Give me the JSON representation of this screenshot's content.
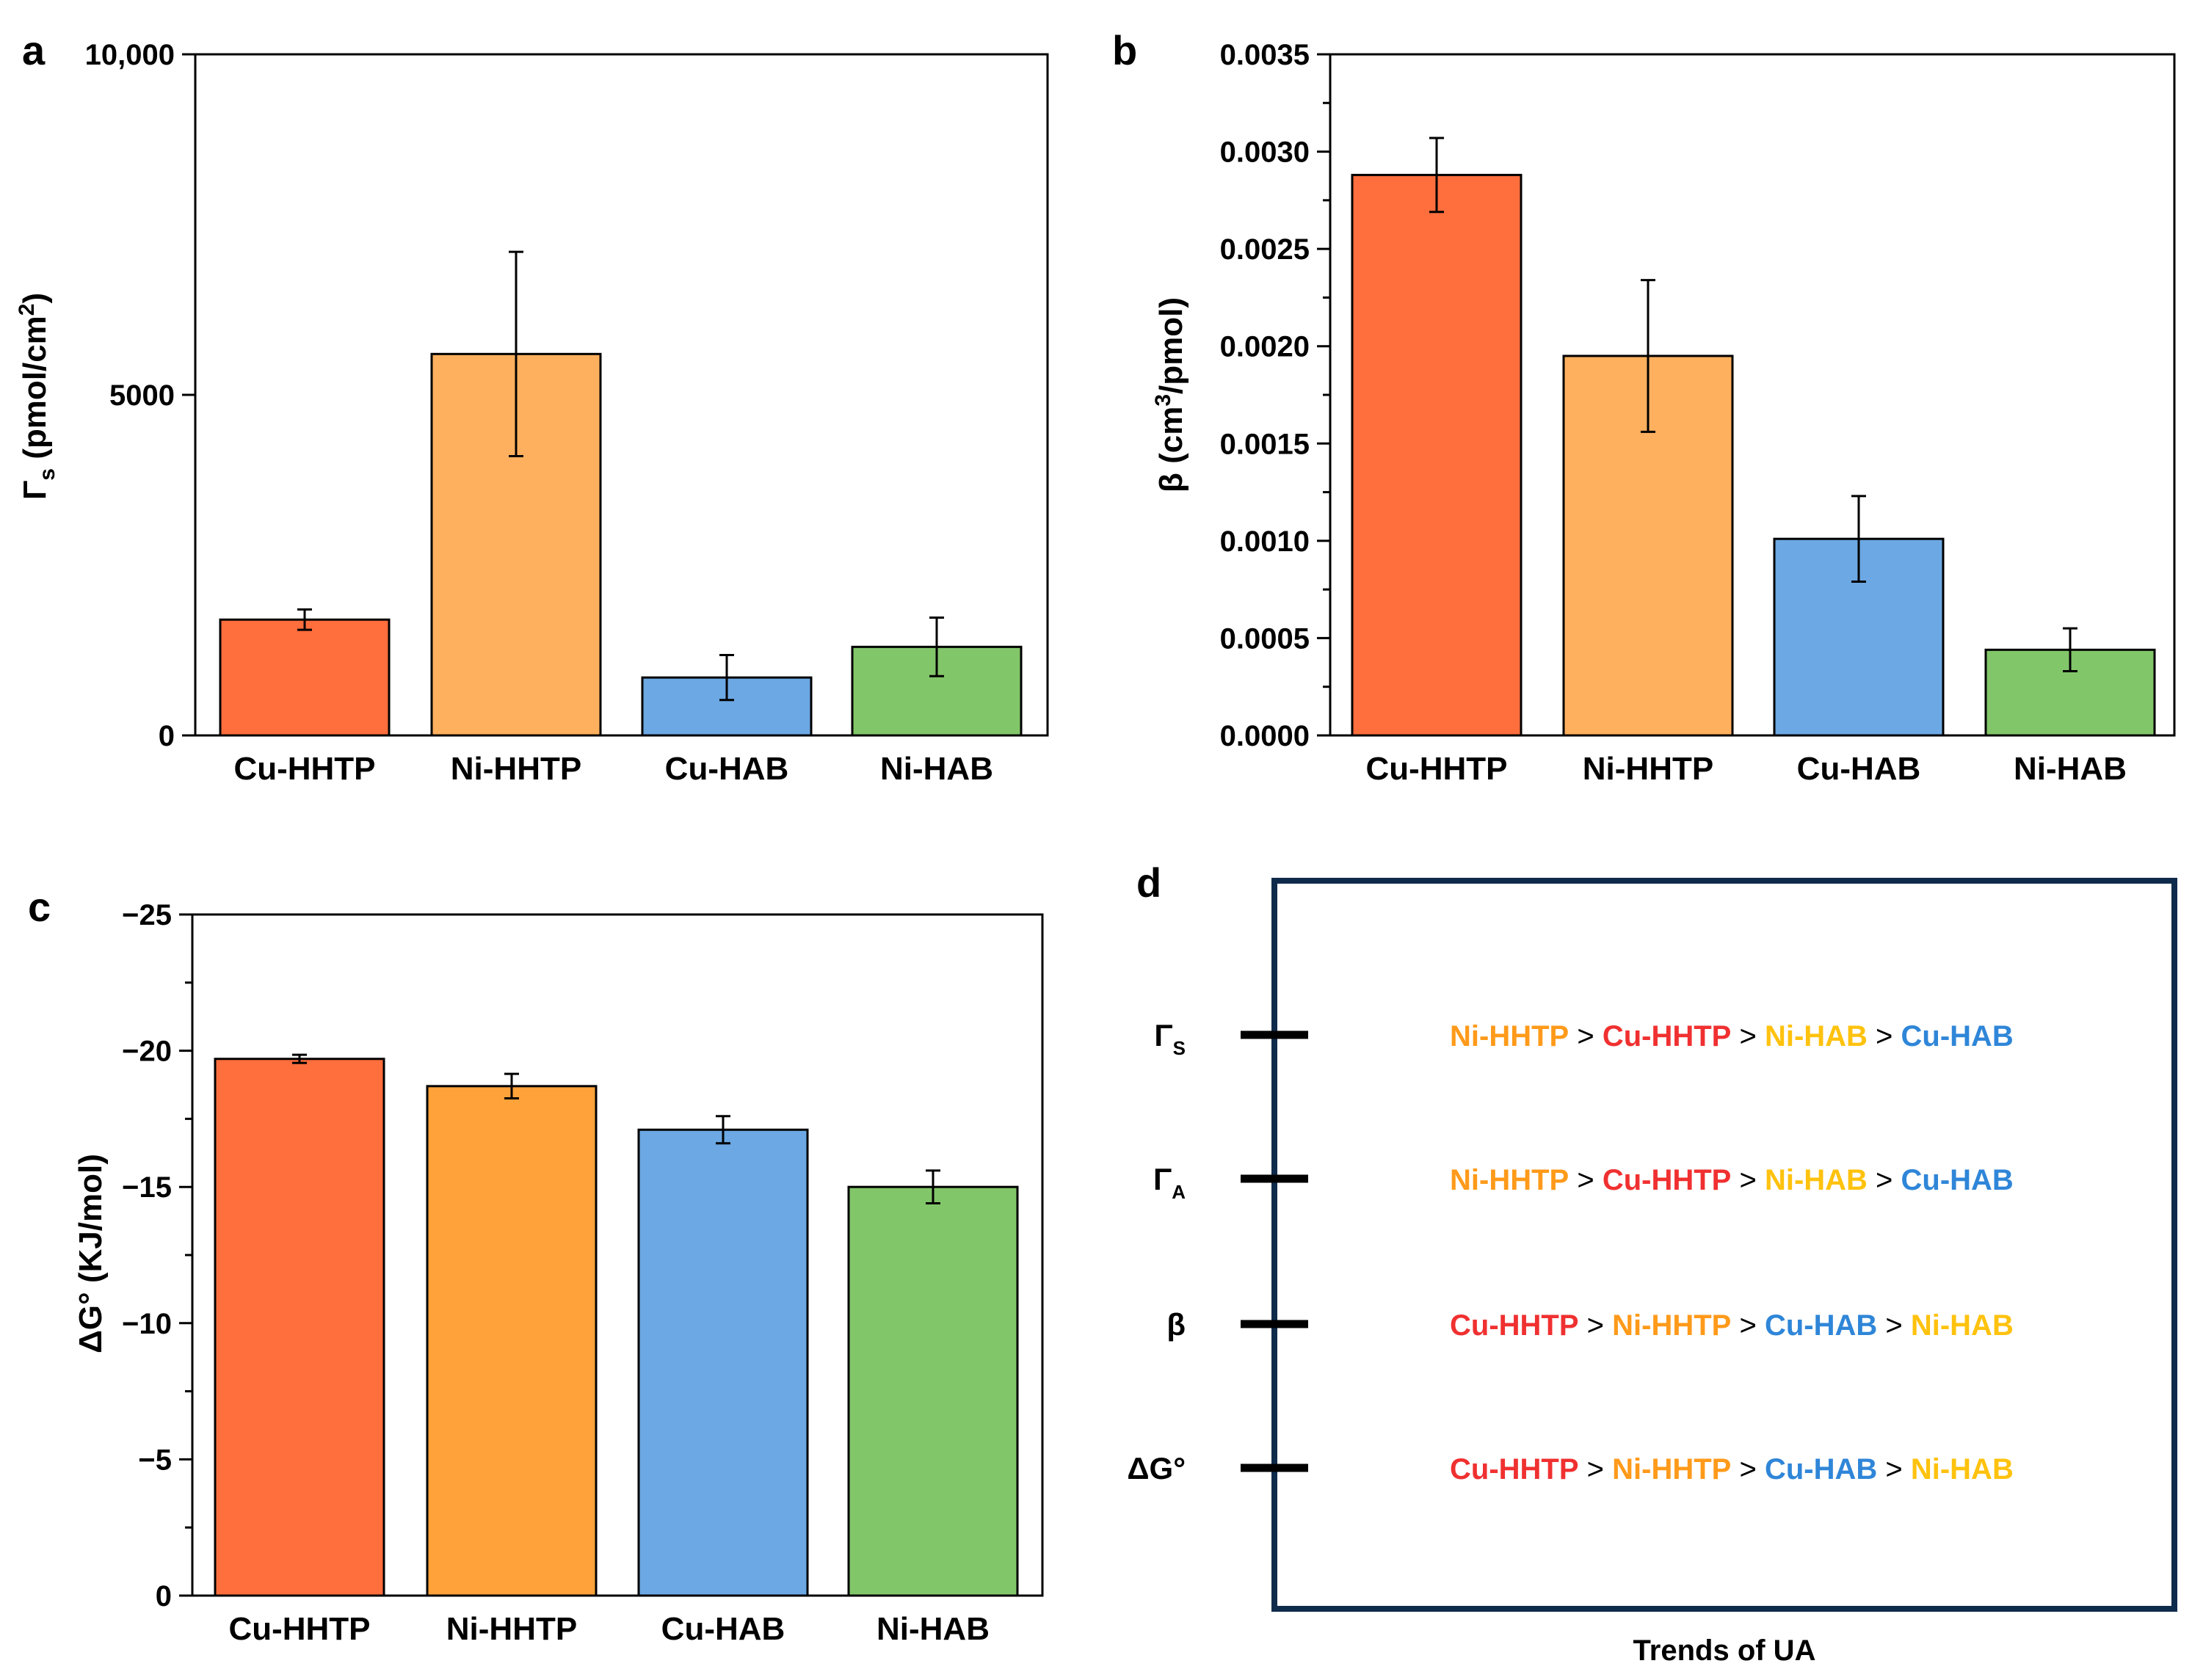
{
  "colors": {
    "Cu-HHTP": "#FF6E3D",
    "Ni-HHTP": "#FFB05E",
    "Ni-HHTP-c": "#FFA23A",
    "Cu-HAB": "#6CA8E3",
    "Ni-HAB": "#82C66A",
    "d_Cu-HHTP": "#F03030",
    "d_Ni-HHTP": "#FF9A1A",
    "d_Cu-HAB": "#2F86D8",
    "d_Ni-HAB": "#FFC20E",
    "frame": "#0F2B4C"
  },
  "chart_data": [
    {
      "panel": "a",
      "type": "bar",
      "categories": [
        "Cu-HHTP",
        "Ni-HHTP",
        "Cu-HAB",
        "Ni-HAB"
      ],
      "values": [
        1700,
        5600,
        850,
        1300
      ],
      "errors": [
        150,
        1500,
        330,
        430
      ],
      "ylim": [
        0,
        10000
      ],
      "yticks": [
        0,
        5000,
        10000
      ],
      "ytick_labels": [
        "0",
        "5000",
        "10,000"
      ],
      "ylabel_main": "Γ",
      "ylabel_sub": "s",
      "ylabel_rest": " (pmol/cm",
      "ylabel_sup": "2",
      "ylabel_end": ")",
      "minor_ticks": false
    },
    {
      "panel": "b",
      "type": "bar",
      "categories": [
        "Cu-HHTP",
        "Ni-HHTP",
        "Cu-HAB",
        "Ni-HAB"
      ],
      "values": [
        0.00288,
        0.00195,
        0.00101,
        0.00044
      ],
      "errors": [
        0.00019,
        0.00039,
        0.00022,
        0.00011
      ],
      "ylim": [
        0,
        0.0035
      ],
      "yticks": [
        0,
        0.0005,
        0.001,
        0.0015,
        0.002,
        0.0025,
        0.003,
        0.0035
      ],
      "ytick_labels": [
        "0.0000",
        "0.0005",
        "0.0010",
        "0.0015",
        "0.0020",
        "0.0025",
        "0.0030",
        "0.0035"
      ],
      "ylabel_main": "β (cm",
      "ylabel_sub": "",
      "ylabel_rest": "",
      "ylabel_sup": "3",
      "ylabel_end": "/pmol)",
      "minor_ticks": true
    },
    {
      "panel": "c",
      "type": "bar",
      "categories": [
        "Cu-HHTP",
        "Ni-HHTP",
        "Cu-HAB",
        "Ni-HAB"
      ],
      "values": [
        -19.7,
        -18.7,
        -17.1,
        -15.0
      ],
      "errors": [
        0.15,
        0.45,
        0.5,
        0.6
      ],
      "ylim": [
        0,
        -25
      ],
      "yticks": [
        0,
        -5,
        -10,
        -15,
        -20,
        -25
      ],
      "ytick_labels": [
        "0",
        "−5",
        "−10",
        "−15",
        "−20",
        "−25"
      ],
      "ylabel_main": "ΔG° (KJ/mol)",
      "ylabel_sub": "",
      "ylabel_rest": "",
      "ylabel_sup": "",
      "ylabel_end": "",
      "minor_ticks": true
    }
  ],
  "panel_labels": {
    "a": "a",
    "b": "b",
    "c": "c",
    "d": "d"
  },
  "panel_d": {
    "caption": "Trends of UA",
    "separator": ">",
    "rows": [
      {
        "label": "Γ",
        "sub": "S",
        "order": [
          "Ni-HHTP",
          "Cu-HHTP",
          "Ni-HAB",
          "Cu-HAB"
        ]
      },
      {
        "label": "Γ",
        "sub": "A",
        "order": [
          "Ni-HHTP",
          "Cu-HHTP",
          "Ni-HAB",
          "Cu-HAB"
        ]
      },
      {
        "label": "β",
        "sub": "",
        "order": [
          "Cu-HHTP",
          "Ni-HHTP",
          "Cu-HAB",
          "Ni-HAB"
        ]
      },
      {
        "label": "ΔG°",
        "sub": "",
        "order": [
          "Cu-HHTP",
          "Ni-HHTP",
          "Cu-HAB",
          "Ni-HAB"
        ]
      }
    ]
  }
}
